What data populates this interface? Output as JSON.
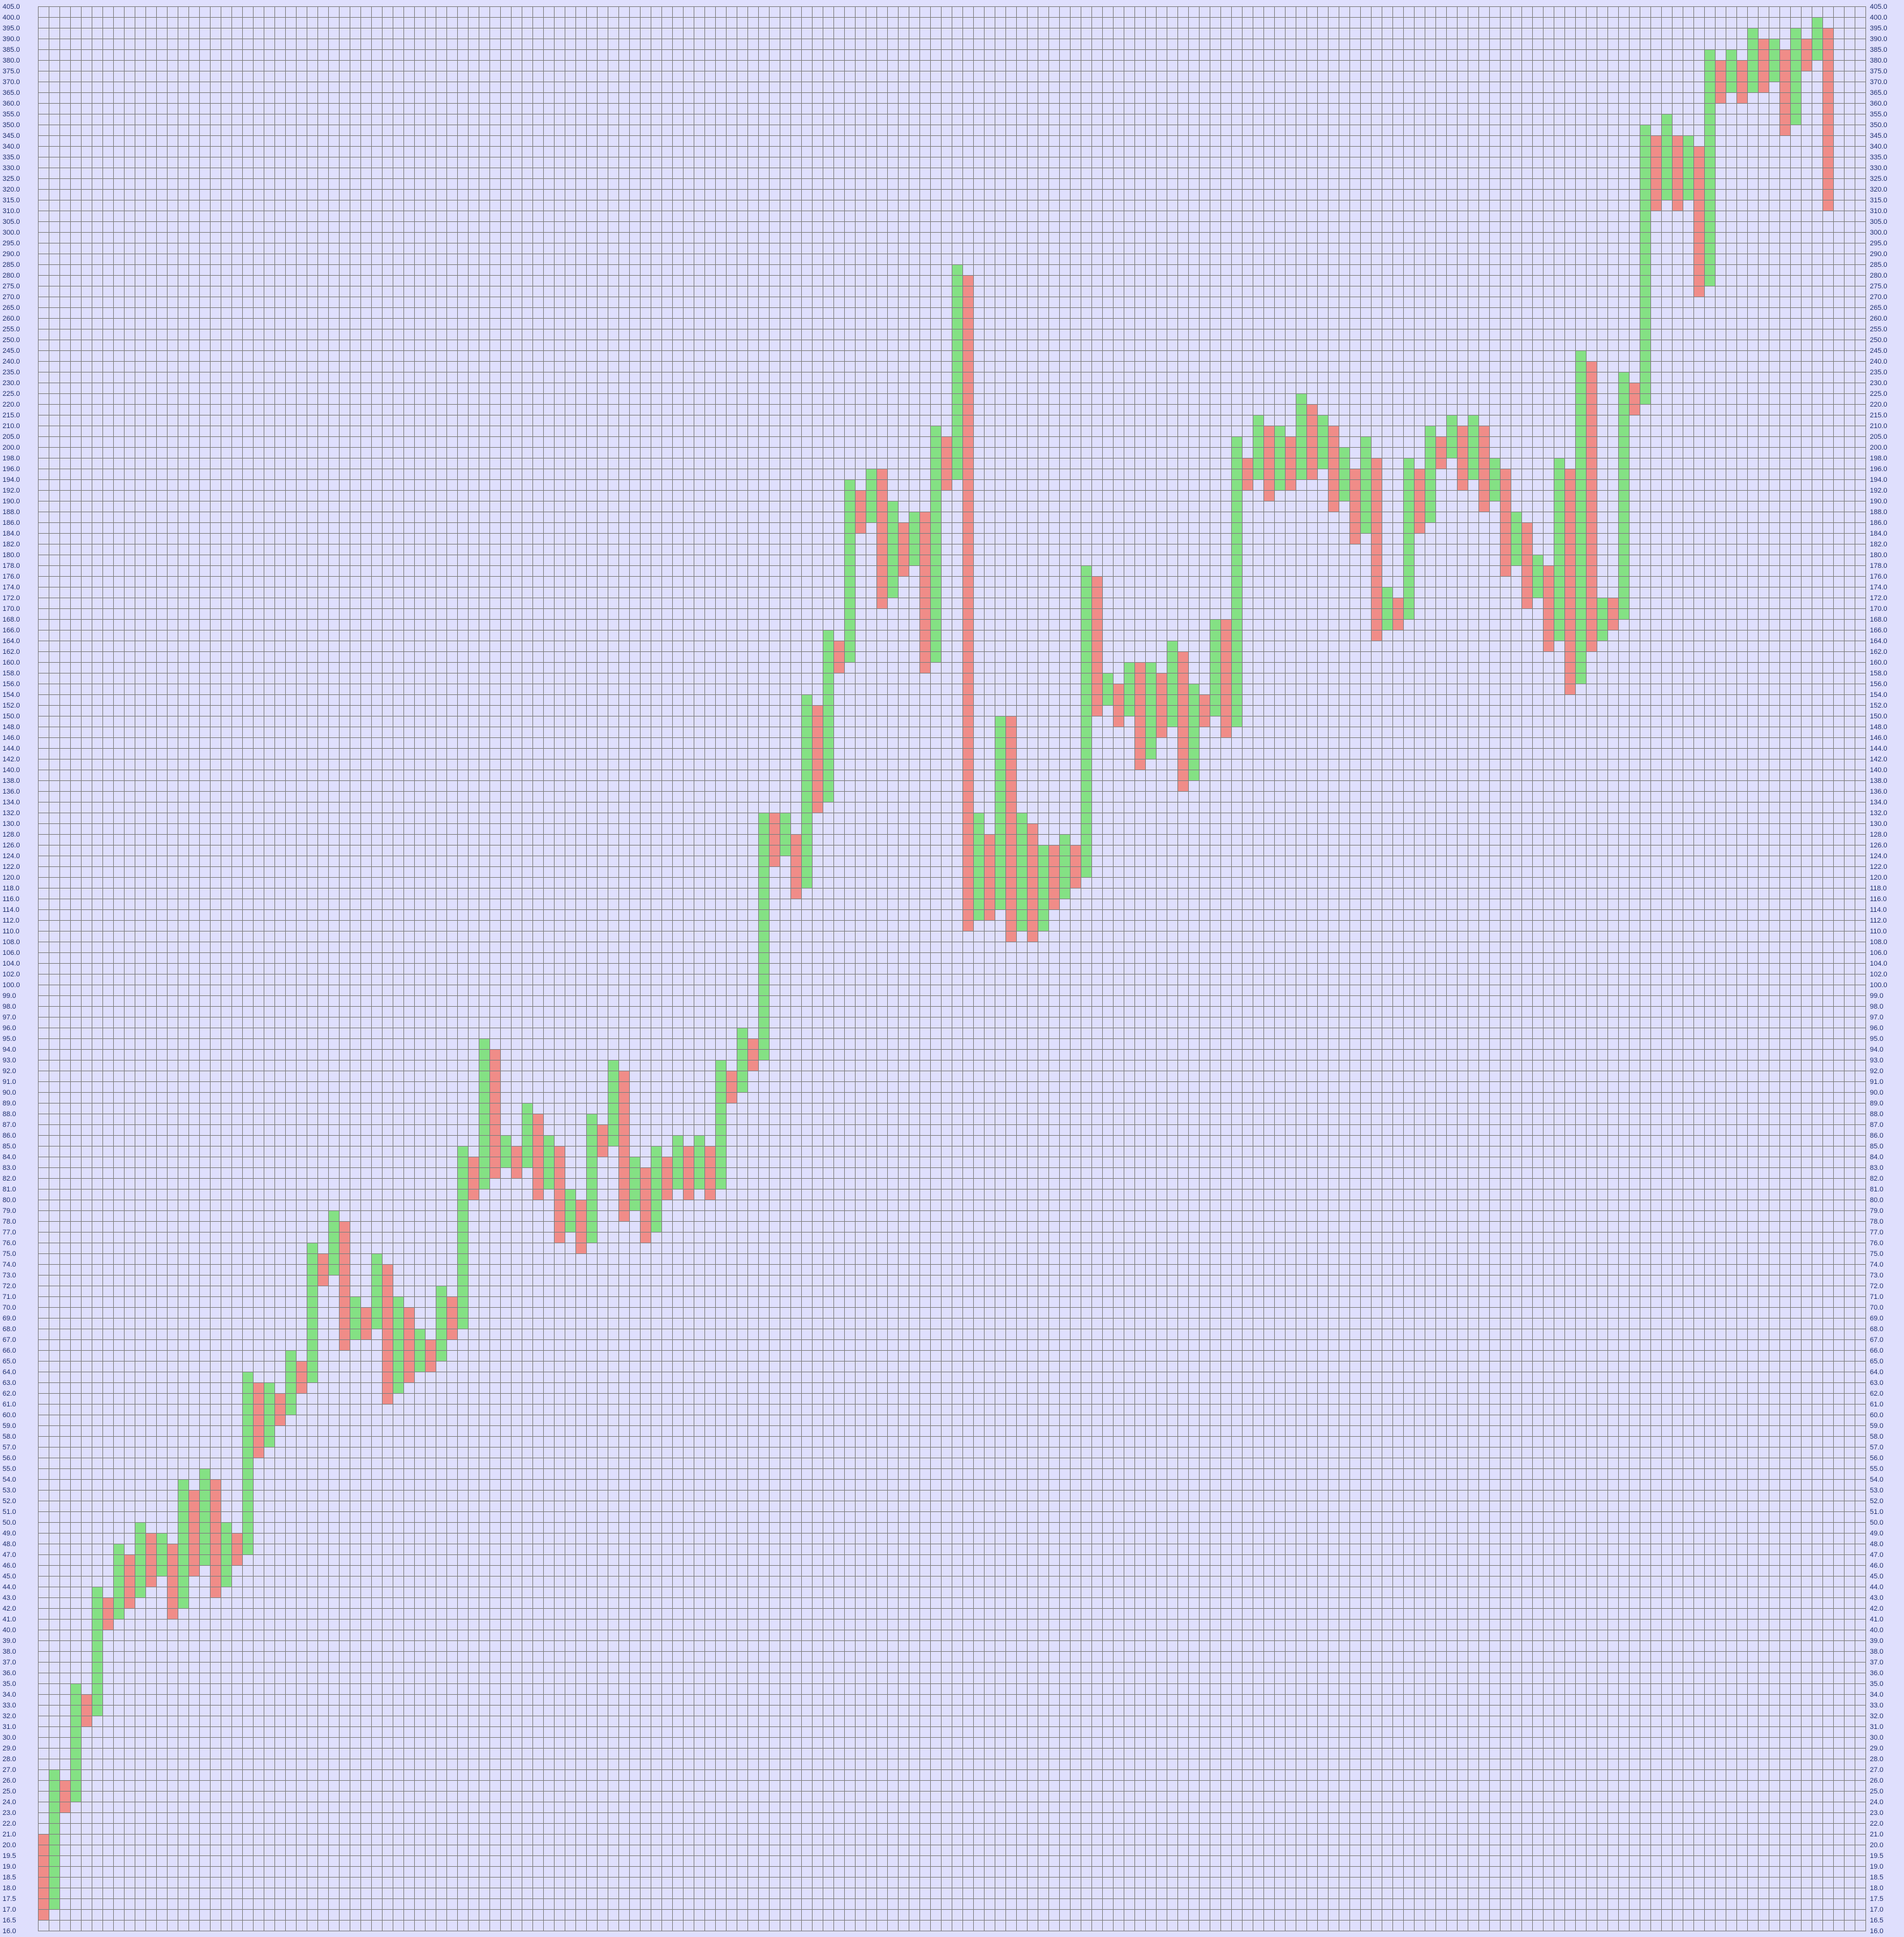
{
  "chart_data": {
    "type": "point-and-figure",
    "title": "",
    "xlabel": "",
    "ylabel": "",
    "ylim": [
      16.0,
      405.0
    ],
    "grid": true,
    "y_axis_sides": [
      "left",
      "right"
    ],
    "colors": {
      "up": "#84e184",
      "down": "#f08c88",
      "background": "#dfdffd",
      "grid": "#808080",
      "tick_text": "#1f2f6f"
    },
    "y_tick_labels": [
      "16.0",
      "16.5",
      "17.0",
      "17.5",
      "18.0",
      "18.5",
      "19.0",
      "19.5",
      "20.0",
      "21.0",
      "22.0",
      "23.0",
      "24.0",
      "25.0",
      "26.0",
      "27.0",
      "28.0",
      "29.0",
      "30.0",
      "31.0",
      "32.0",
      "33.0",
      "34.0",
      "35.0",
      "36.0",
      "37.0",
      "38.0",
      "39.0",
      "40.0",
      "41.0",
      "42.0",
      "43.0",
      "44.0",
      "45.0",
      "46.0",
      "47.0",
      "48.0",
      "49.0",
      "50.0",
      "51.0",
      "52.0",
      "53.0",
      "54.0",
      "55.0",
      "56.0",
      "57.0",
      "58.0",
      "59.0",
      "60.0",
      "61.0",
      "62.0",
      "63.0",
      "64.0",
      "65.0",
      "66.0",
      "67.0",
      "68.0",
      "69.0",
      "70.0",
      "71.0",
      "72.0",
      "73.0",
      "74.0",
      "75.0",
      "76.0",
      "77.0",
      "78.0",
      "79.0",
      "80.0",
      "81.0",
      "82.0",
      "83.0",
      "84.0",
      "85.0",
      "86.0",
      "87.0",
      "88.0",
      "89.0",
      "90.0",
      "91.0",
      "92.0",
      "93.0",
      "94.0",
      "95.0",
      "96.0",
      "97.0",
      "98.0",
      "99.0",
      "100.0",
      "102.0",
      "104.0",
      "106.0",
      "108.0",
      "110.0",
      "112.0",
      "114.0",
      "116.0",
      "118.0",
      "120.0",
      "122.0",
      "124.0",
      "126.0",
      "128.0",
      "130.0",
      "132.0",
      "134.0",
      "136.0",
      "138.0",
      "140.0",
      "142.0",
      "144.0",
      "146.0",
      "148.0",
      "150.0",
      "152.0",
      "154.0",
      "156.0",
      "158.0",
      "160.0",
      "162.0",
      "164.0",
      "166.0",
      "168.0",
      "170.0",
      "172.0",
      "174.0",
      "176.0",
      "178.0",
      "180.0",
      "182.0",
      "184.0",
      "186.0",
      "188.0",
      "190.0",
      "192.0",
      "194.0",
      "196.0",
      "198.0",
      "200.0",
      "205.0",
      "210.0",
      "215.0",
      "220.0",
      "225.0",
      "230.0",
      "235.0",
      "240.0",
      "245.0",
      "250.0",
      "255.0",
      "260.0",
      "265.0",
      "270.0",
      "275.0",
      "280.0",
      "285.0",
      "290.0",
      "295.0",
      "300.0",
      "305.0",
      "310.0",
      "315.0",
      "320.0",
      "325.0",
      "330.0",
      "335.0",
      "340.0",
      "345.0",
      "350.0",
      "355.0",
      "360.0",
      "365.0",
      "370.0",
      "375.0",
      "380.0",
      "385.0",
      "390.0",
      "395.0",
      "400.0",
      "405.0"
    ],
    "columns": [
      {
        "dir": "down",
        "high": 21,
        "low": 16.5
      },
      {
        "dir": "up",
        "high": 27,
        "low": 17
      },
      {
        "dir": "down",
        "high": 26,
        "low": 23
      },
      {
        "dir": "up",
        "high": 35,
        "low": 24
      },
      {
        "dir": "down",
        "high": 34,
        "low": 31
      },
      {
        "dir": "up",
        "high": 44,
        "low": 32
      },
      {
        "dir": "down",
        "high": 43,
        "low": 40
      },
      {
        "dir": "up",
        "high": 48,
        "low": 41
      },
      {
        "dir": "down",
        "high": 47,
        "low": 42
      },
      {
        "dir": "up",
        "high": 50,
        "low": 43
      },
      {
        "dir": "down",
        "high": 49,
        "low": 44
      },
      {
        "dir": "up",
        "high": 49,
        "low": 45
      },
      {
        "dir": "down",
        "high": 48,
        "low": 41
      },
      {
        "dir": "up",
        "high": 54,
        "low": 42
      },
      {
        "dir": "down",
        "high": 53,
        "low": 45
      },
      {
        "dir": "up",
        "high": 55,
        "low": 46
      },
      {
        "dir": "down",
        "high": 54,
        "low": 43
      },
      {
        "dir": "up",
        "high": 50,
        "low": 44
      },
      {
        "dir": "down",
        "high": 49,
        "low": 46
      },
      {
        "dir": "up",
        "high": 64,
        "low": 47
      },
      {
        "dir": "down",
        "high": 63,
        "low": 56
      },
      {
        "dir": "up",
        "high": 63,
        "low": 57
      },
      {
        "dir": "down",
        "high": 62,
        "low": 59
      },
      {
        "dir": "up",
        "high": 66,
        "low": 60
      },
      {
        "dir": "down",
        "high": 65,
        "low": 62
      },
      {
        "dir": "up",
        "high": 76,
        "low": 63
      },
      {
        "dir": "down",
        "high": 75,
        "low": 72
      },
      {
        "dir": "up",
        "high": 79,
        "low": 73
      },
      {
        "dir": "down",
        "high": 78,
        "low": 66
      },
      {
        "dir": "up",
        "high": 71,
        "low": 67
      },
      {
        "dir": "down",
        "high": 70,
        "low": 67
      },
      {
        "dir": "up",
        "high": 75,
        "low": 68
      },
      {
        "dir": "down",
        "high": 74,
        "low": 61
      },
      {
        "dir": "up",
        "high": 71,
        "low": 62
      },
      {
        "dir": "down",
        "high": 70,
        "low": 63
      },
      {
        "dir": "up",
        "high": 68,
        "low": 64
      },
      {
        "dir": "down",
        "high": 67,
        "low": 64
      },
      {
        "dir": "up",
        "high": 72,
        "low": 65
      },
      {
        "dir": "down",
        "high": 71,
        "low": 67
      },
      {
        "dir": "up",
        "high": 85,
        "low": 68
      },
      {
        "dir": "down",
        "high": 84,
        "low": 80
      },
      {
        "dir": "up",
        "high": 95,
        "low": 81
      },
      {
        "dir": "down",
        "high": 94,
        "low": 82
      },
      {
        "dir": "up",
        "high": 86,
        "low": 83
      },
      {
        "dir": "down",
        "high": 85,
        "low": 82
      },
      {
        "dir": "up",
        "high": 89,
        "low": 83
      },
      {
        "dir": "down",
        "high": 88,
        "low": 80
      },
      {
        "dir": "up",
        "high": 86,
        "low": 81
      },
      {
        "dir": "down",
        "high": 85,
        "low": 76
      },
      {
        "dir": "up",
        "high": 81,
        "low": 77
      },
      {
        "dir": "down",
        "high": 80,
        "low": 75
      },
      {
        "dir": "up",
        "high": 88,
        "low": 76
      },
      {
        "dir": "down",
        "high": 87,
        "low": 84
      },
      {
        "dir": "up",
        "high": 93,
        "low": 85
      },
      {
        "dir": "down",
        "high": 92,
        "low": 78
      },
      {
        "dir": "up",
        "high": 84,
        "low": 79
      },
      {
        "dir": "down",
        "high": 83,
        "low": 76
      },
      {
        "dir": "up",
        "high": 85,
        "low": 77
      },
      {
        "dir": "down",
        "high": 84,
        "low": 80
      },
      {
        "dir": "up",
        "high": 86,
        "low": 81
      },
      {
        "dir": "down",
        "high": 85,
        "low": 80
      },
      {
        "dir": "up",
        "high": 86,
        "low": 81
      },
      {
        "dir": "down",
        "high": 85,
        "low": 80
      },
      {
        "dir": "up",
        "high": 93,
        "low": 81
      },
      {
        "dir": "down",
        "high": 92,
        "low": 89
      },
      {
        "dir": "up",
        "high": 96,
        "low": 90
      },
      {
        "dir": "down",
        "high": 95,
        "low": 92
      },
      {
        "dir": "up",
        "high": 132,
        "low": 93
      },
      {
        "dir": "down",
        "high": 132,
        "low": 122
      },
      {
        "dir": "up",
        "high": 132,
        "low": 124
      },
      {
        "dir": "down",
        "high": 128,
        "low": 116
      },
      {
        "dir": "up",
        "high": 154,
        "low": 118
      },
      {
        "dir": "down",
        "high": 152,
        "low": 132
      },
      {
        "dir": "up",
        "high": 166,
        "low": 134
      },
      {
        "dir": "down",
        "high": 164,
        "low": 158
      },
      {
        "dir": "up",
        "high": 194,
        "low": 160
      },
      {
        "dir": "down",
        "high": 192,
        "low": 184
      },
      {
        "dir": "up",
        "high": 196,
        "low": 186
      },
      {
        "dir": "down",
        "high": 196,
        "low": 170
      },
      {
        "dir": "up",
        "high": 190,
        "low": 172
      },
      {
        "dir": "down",
        "high": 186,
        "low": 176
      },
      {
        "dir": "up",
        "high": 188,
        "low": 178
      },
      {
        "dir": "down",
        "high": 188,
        "low": 158
      },
      {
        "dir": "up",
        "high": 210,
        "low": 160
      },
      {
        "dir": "down",
        "high": 205,
        "low": 192
      },
      {
        "dir": "up",
        "high": 285,
        "low": 194
      },
      {
        "dir": "down",
        "high": 280,
        "low": 110
      },
      {
        "dir": "up",
        "high": 132,
        "low": 112
      },
      {
        "dir": "down",
        "high": 128,
        "low": 112
      },
      {
        "dir": "up",
        "high": 150,
        "low": 114
      },
      {
        "dir": "down",
        "high": 150,
        "low": 108
      },
      {
        "dir": "up",
        "high": 132,
        "low": 110
      },
      {
        "dir": "down",
        "high": 130,
        "low": 108
      },
      {
        "dir": "up",
        "high": 126,
        "low": 110
      },
      {
        "dir": "down",
        "high": 126,
        "low": 114
      },
      {
        "dir": "up",
        "high": 128,
        "low": 116
      },
      {
        "dir": "down",
        "high": 126,
        "low": 118
      },
      {
        "dir": "up",
        "high": 178,
        "low": 120
      },
      {
        "dir": "down",
        "high": 176,
        "low": 150
      },
      {
        "dir": "up",
        "high": 158,
        "low": 152
      },
      {
        "dir": "down",
        "high": 156,
        "low": 148
      },
      {
        "dir": "up",
        "high": 160,
        "low": 150
      },
      {
        "dir": "down",
        "high": 160,
        "low": 140
      },
      {
        "dir": "up",
        "high": 160,
        "low": 142
      },
      {
        "dir": "down",
        "high": 158,
        "low": 146
      },
      {
        "dir": "up",
        "high": 164,
        "low": 148
      },
      {
        "dir": "down",
        "high": 162,
        "low": 136
      },
      {
        "dir": "up",
        "high": 156,
        "low": 138
      },
      {
        "dir": "down",
        "high": 154,
        "low": 148
      },
      {
        "dir": "up",
        "high": 168,
        "low": 150
      },
      {
        "dir": "down",
        "high": 168,
        "low": 146
      },
      {
        "dir": "up",
        "high": 205,
        "low": 148
      },
      {
        "dir": "down",
        "high": 198,
        "low": 192
      },
      {
        "dir": "up",
        "high": 215,
        "low": 194
      },
      {
        "dir": "down",
        "high": 210,
        "low": 190
      },
      {
        "dir": "up",
        "high": 210,
        "low": 192
      },
      {
        "dir": "down",
        "high": 205,
        "low": 192
      },
      {
        "dir": "up",
        "high": 225,
        "low": 194
      },
      {
        "dir": "down",
        "high": 220,
        "low": 194
      },
      {
        "dir": "up",
        "high": 215,
        "low": 196
      },
      {
        "dir": "down",
        "high": 210,
        "low": 188
      },
      {
        "dir": "up",
        "high": 200,
        "low": 190
      },
      {
        "dir": "down",
        "high": 196,
        "low": 182
      },
      {
        "dir": "up",
        "high": 205,
        "low": 184
      },
      {
        "dir": "down",
        "high": 198,
        "low": 164
      },
      {
        "dir": "up",
        "high": 174,
        "low": 166
      },
      {
        "dir": "down",
        "high": 172,
        "low": 166
      },
      {
        "dir": "up",
        "high": 198,
        "low": 168
      },
      {
        "dir": "down",
        "high": 196,
        "low": 184
      },
      {
        "dir": "up",
        "high": 210,
        "low": 186
      },
      {
        "dir": "down",
        "high": 205,
        "low": 196
      },
      {
        "dir": "up",
        "high": 215,
        "low": 198
      },
      {
        "dir": "down",
        "high": 210,
        "low": 192
      },
      {
        "dir": "up",
        "high": 215,
        "low": 194
      },
      {
        "dir": "down",
        "high": 210,
        "low": 188
      },
      {
        "dir": "up",
        "high": 198,
        "low": 190
      },
      {
        "dir": "down",
        "high": 196,
        "low": 176
      },
      {
        "dir": "up",
        "high": 188,
        "low": 178
      },
      {
        "dir": "down",
        "high": 186,
        "low": 170
      },
      {
        "dir": "up",
        "high": 180,
        "low": 172
      },
      {
        "dir": "down",
        "high": 178,
        "low": 162
      },
      {
        "dir": "up",
        "high": 198,
        "low": 164
      },
      {
        "dir": "down",
        "high": 196,
        "low": 154
      },
      {
        "dir": "up",
        "high": 245,
        "low": 156
      },
      {
        "dir": "down",
        "high": 240,
        "low": 162
      },
      {
        "dir": "up",
        "high": 172,
        "low": 164
      },
      {
        "dir": "down",
        "high": 172,
        "low": 166
      },
      {
        "dir": "up",
        "high": 235,
        "low": 168
      },
      {
        "dir": "down",
        "high": 230,
        "low": 215
      },
      {
        "dir": "up",
        "high": 350,
        "low": 220
      },
      {
        "dir": "down",
        "high": 345,
        "low": 310
      },
      {
        "dir": "up",
        "high": 355,
        "low": 315
      },
      {
        "dir": "down",
        "high": 345,
        "low": 310
      },
      {
        "dir": "up",
        "high": 345,
        "low": 315
      },
      {
        "dir": "down",
        "high": 340,
        "low": 270
      },
      {
        "dir": "up",
        "high": 385,
        "low": 275
      },
      {
        "dir": "down",
        "high": 380,
        "low": 360
      },
      {
        "dir": "up",
        "high": 385,
        "low": 365
      },
      {
        "dir": "down",
        "high": 380,
        "low": 360
      },
      {
        "dir": "up",
        "high": 395,
        "low": 365
      },
      {
        "dir": "down",
        "high": 390,
        "low": 365
      },
      {
        "dir": "up",
        "high": 390,
        "low": 370
      },
      {
        "dir": "down",
        "high": 385,
        "low": 345
      },
      {
        "dir": "up",
        "high": 395,
        "low": 350
      },
      {
        "dir": "down",
        "high": 390,
        "low": 375
      },
      {
        "dir": "up",
        "high": 400,
        "low": 380
      },
      {
        "dir": "down",
        "high": 395,
        "low": 310
      }
    ]
  }
}
